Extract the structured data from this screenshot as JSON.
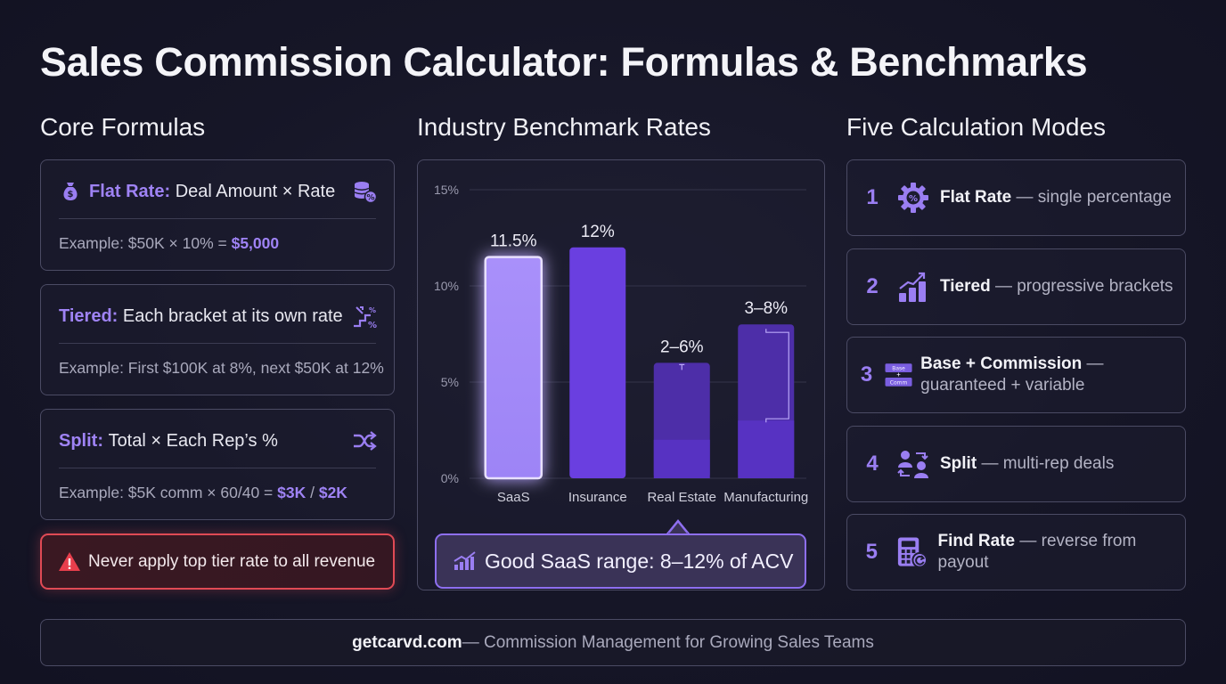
{
  "title": "Sales Commission Calculator: Formulas & Benchmarks",
  "colors": {
    "accent": "#9a7ef2",
    "warning": "#e04a55",
    "bar": "#6a3fe0",
    "bar_light": "#a58cf8"
  },
  "sections": {
    "formulas": "Core Formulas",
    "benchmarks": "Industry Benchmark Rates",
    "modes": "Five Calculation Modes"
  },
  "formulas": [
    {
      "name": "Flat Rate:",
      "desc": "Deal Amount × Rate",
      "lead_icon": "money-bag-icon",
      "trail_icon": "coins-percent-icon",
      "example_prefix": "Example: $50K × 10% = ",
      "example_highlight": "$5,000",
      "example_mid": "",
      "example_highlight2": ""
    },
    {
      "name": "Tiered:",
      "desc": "Each bracket at its own rate",
      "trail_icon": "tier-steps-icon",
      "example_prefix": "Example: First $100K at 8%, next $50K at 12%",
      "example_highlight": "",
      "example_mid": "",
      "example_highlight2": ""
    },
    {
      "name": "Split:",
      "desc": "Total × Each Rep’s %",
      "trail_icon": "shuffle-icon",
      "example_prefix": "Example: $5K comm × 60/40 = ",
      "example_highlight": "$3K",
      "example_mid": " / ",
      "example_highlight2": "$2K"
    }
  ],
  "warning": {
    "text": "Never apply top tier rate to all revenue",
    "icon": "warning-icon"
  },
  "chart_data": {
    "type": "bar",
    "categories": [
      "SaaS",
      "Insurance",
      "Real Estate",
      "Manufacturing"
    ],
    "values": [
      11.5,
      12,
      6,
      8
    ],
    "range_low": [
      null,
      null,
      2,
      3
    ],
    "range_high": [
      null,
      null,
      6,
      8
    ],
    "data_labels": [
      "11.5%",
      "12%",
      "2–6%",
      "3–8%"
    ],
    "highlighted": "SaaS",
    "ylim": [
      0,
      15
    ],
    "yticks": [
      0,
      5,
      10,
      15
    ],
    "ytick_labels": [
      "0%",
      "5%",
      "10%",
      "15%"
    ],
    "title": "Industry Benchmark Rates",
    "xlabel": "",
    "ylabel": "",
    "grid": true
  },
  "callout": {
    "text": "Good SaaS range: 8–12% of ACV",
    "icon": "trend-chart-icon"
  },
  "modes": [
    {
      "num": "1",
      "name": "Flat Rate",
      "desc": " — single percentage",
      "icon": "gear-percent-icon"
    },
    {
      "num": "2",
      "name": "Tiered",
      "desc": " — progressive brackets",
      "icon": "rising-bars-icon"
    },
    {
      "num": "3",
      "name": "Base + Commission",
      "desc": " — guaranteed + variable",
      "icon": "base-commission-icon",
      "icon_top": "Base",
      "icon_plus": "+",
      "icon_bottom": "Comm"
    },
    {
      "num": "4",
      "name": "Split",
      "desc": " — multi-rep deals",
      "icon": "split-reps-icon"
    },
    {
      "num": "5",
      "name": "Find Rate",
      "desc": " — reverse from payout",
      "icon": "calculator-reverse-icon"
    }
  ],
  "footer": {
    "brand": "getcarvd.com",
    "tagline": " — Commission Management for Growing Sales Teams"
  }
}
